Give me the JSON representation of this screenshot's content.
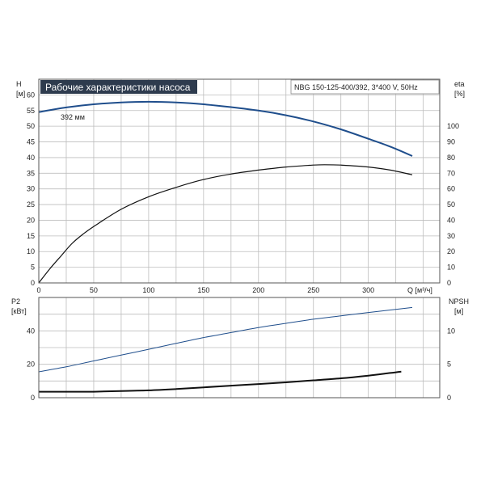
{
  "chart_data": [
    {
      "type": "line",
      "title": "Рабочие характеристики насоса",
      "model_label": "NBG 150-125-400/392, 3*400 V, 50Hz",
      "left_axis": {
        "label": "H",
        "unit": "[м]",
        "ticks": [
          "0",
          "5",
          "10",
          "15",
          "20",
          "25",
          "30",
          "35",
          "40",
          "45",
          "50",
          "55",
          "60"
        ],
        "range": [
          0,
          65
        ]
      },
      "right_axis": {
        "label": "eta",
        "unit": "[%]",
        "ticks": [
          "0",
          "10",
          "20",
          "30",
          "40",
          "50",
          "60",
          "70",
          "80",
          "90",
          "100"
        ],
        "range": [
          0,
          130
        ]
      },
      "x_axis": {
        "label": "Q [м³/ч]",
        "ticks": [
          "0",
          "50",
          "100",
          "150",
          "200",
          "250",
          "300"
        ],
        "range": [
          0,
          365
        ]
      },
      "grid": true,
      "curve_label": "392 мм",
      "series": [
        {
          "name": "H",
          "axis": "left",
          "color": "#1f4e8c",
          "x": [
            0,
            25,
            50,
            75,
            100,
            125,
            150,
            175,
            200,
            225,
            250,
            275,
            300,
            320,
            340
          ],
          "y": [
            54.5,
            56.0,
            57.0,
            57.6,
            57.8,
            57.6,
            57.0,
            56.1,
            55.0,
            53.5,
            51.5,
            49.0,
            46.0,
            43.5,
            40.5
          ]
        },
        {
          "name": "eta",
          "axis": "right",
          "color": "#111111",
          "x": [
            0,
            10,
            20,
            30,
            40,
            50,
            75,
            100,
            125,
            150,
            175,
            200,
            225,
            250,
            260,
            275,
            300,
            320,
            340
          ],
          "y": [
            0,
            9,
            17,
            25,
            31,
            36,
            47,
            55,
            61,
            66,
            69.5,
            72,
            74,
            75.2,
            75.4,
            75.2,
            74,
            72,
            69
          ]
        }
      ]
    },
    {
      "type": "line",
      "left_axis": {
        "label": "P2",
        "unit": "[кВт]",
        "ticks": [
          "0",
          "20",
          "40"
        ],
        "range": [
          0,
          60
        ]
      },
      "right_axis": {
        "label": "NPSH",
        "unit": "[м]",
        "ticks": [
          "0",
          "5",
          "10"
        ],
        "range": [
          0,
          15
        ]
      },
      "x_range": [
        0,
        365
      ],
      "grid": true,
      "series": [
        {
          "name": "P2",
          "axis": "left",
          "color": "#1f4e8c",
          "x": [
            0,
            25,
            50,
            75,
            100,
            125,
            150,
            175,
            200,
            225,
            250,
            275,
            300,
            320,
            340
          ],
          "y": [
            15.5,
            18.5,
            22,
            25.5,
            29,
            32.5,
            36,
            39,
            42,
            44.5,
            47,
            49,
            51,
            52.5,
            54
          ]
        },
        {
          "name": "NPSH",
          "axis": "right",
          "color": "#111111",
          "x": [
            0,
            25,
            50,
            75,
            100,
            125,
            150,
            175,
            200,
            225,
            250,
            275,
            300,
            320,
            330
          ],
          "y": [
            0.9,
            0.9,
            0.9,
            1.0,
            1.1,
            1.3,
            1.55,
            1.8,
            2.05,
            2.3,
            2.6,
            2.9,
            3.3,
            3.7,
            3.9
          ]
        }
      ]
    }
  ]
}
